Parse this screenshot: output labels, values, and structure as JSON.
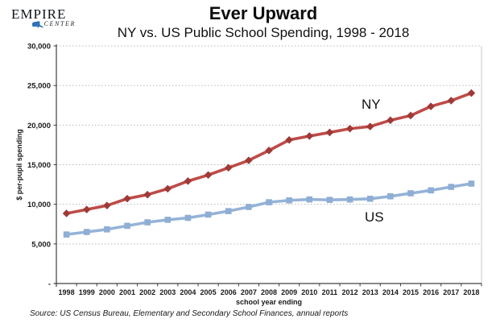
{
  "logo": {
    "line1": "EMPIRE",
    "line2": "CENTER",
    "nys_color": "#2e73b5"
  },
  "header": {
    "title": "Ever Upward",
    "subtitle": "NY vs. US Public School Spending, 1998 - 2018"
  },
  "annotations": {
    "ny_label": "NY",
    "us_label": "US"
  },
  "footer": {
    "source": "Source: US Census Bureau, Elementary and Secondary School Finances, annual reports"
  },
  "colors": {
    "grid": "#b7b7b7",
    "axis": "#404040",
    "plot_border": "#c9c9c9",
    "tick_text": "#1a1a1a"
  },
  "chart_data": {
    "type": "line",
    "title": "Ever Upward",
    "subtitle": "NY vs. US Public School Spending, 1998 - 2018",
    "xlabel": "school year ending",
    "ylabel": "$ per-pupil spending",
    "x": [
      1998,
      1999,
      2000,
      2001,
      2002,
      2003,
      2004,
      2005,
      2006,
      2007,
      2008,
      2009,
      2010,
      2011,
      2012,
      2013,
      2014,
      2015,
      2016,
      2017,
      2018
    ],
    "ylim": [
      0,
      30000
    ],
    "ytick_interval": 5000,
    "ytick_labels": [
      "-",
      "5,000",
      "10,000",
      "15,000",
      "20,000",
      "25,000",
      "30,000"
    ],
    "grid": "horizontal-dotted",
    "legend": "none (series labeled directly on plot: NY above red line, US below blue line)",
    "series": [
      {
        "name": "NY",
        "marker": "diamond",
        "line_color": "#be4b48",
        "marker_color": "#9e3a38",
        "values": [
          8852,
          9344,
          9846,
          10716,
          11218,
          11961,
          12930,
          13703,
          14615,
          15546,
          16794,
          18126,
          18618,
          19076,
          19552,
          19818,
          20610,
          21206,
          22366,
          23091,
          24040
        ]
      },
      {
        "name": "US",
        "marker": "square",
        "line_color": "#95b3d7",
        "marker_color": "#8faed4",
        "values": [
          6189,
          6508,
          6836,
          7284,
          7727,
          8044,
          8287,
          8701,
          9138,
          9666,
          10259,
          10499,
          10615,
          10560,
          10608,
          10700,
          11009,
          11392,
          11762,
          12201,
          12612
        ]
      }
    ]
  }
}
